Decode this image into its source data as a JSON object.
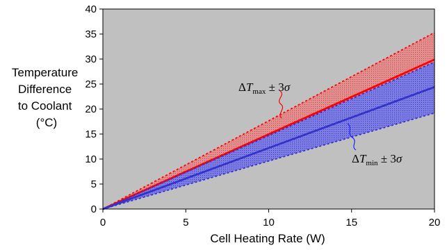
{
  "chart_data": {
    "type": "area",
    "title": "",
    "xlabel": "Cell Heating Rate (W)",
    "ylabel_lines": [
      "Temperature",
      "Difference",
      "to Coolant",
      "(°C)"
    ],
    "xlim": [
      0,
      20
    ],
    "ylim": [
      0,
      40
    ],
    "xticks": [
      0,
      5,
      10,
      15,
      20
    ],
    "yticks": [
      0,
      5,
      10,
      15,
      20,
      25,
      30,
      35,
      40
    ],
    "grid": false,
    "legend": "none",
    "x": [
      0,
      20
    ],
    "series": [
      {
        "key": "dtmax_upper",
        "style": "dotted",
        "color": "#ff0000",
        "values": [
          0,
          35.3
        ]
      },
      {
        "key": "dtmax",
        "style": "solid",
        "color": "#ff0000",
        "values": [
          0,
          29.9
        ]
      },
      {
        "key": "dtmax_lower",
        "style": "dotted",
        "color": "#ff0000",
        "values": [
          0,
          29.4
        ]
      },
      {
        "key": "dtmin_upper",
        "style": "dotted",
        "color": "#3333cc",
        "values": [
          0,
          29.4
        ]
      },
      {
        "key": "dtmin",
        "style": "solid",
        "color": "#3333cc",
        "values": [
          0,
          24.4
        ]
      },
      {
        "key": "dtmin_lower",
        "style": "dotted",
        "color": "#3333cc",
        "values": [
          0,
          19.2
        ]
      }
    ],
    "bands": [
      {
        "key": "dtmax_band",
        "color": "#ff6666",
        "upper": [
          0,
          35.3
        ],
        "lower": [
          0,
          29.4
        ]
      },
      {
        "key": "dtmin_band",
        "color": "#4444ff",
        "upper": [
          0,
          29.4
        ],
        "lower": [
          0,
          19.2
        ]
      }
    ],
    "colors": {
      "plot_background": "#c0c0c0",
      "axes": "#000000"
    },
    "annotations": {
      "dtmax_label": {
        "delta": "Δ",
        "var": "T",
        "sub": "max",
        "pm": " ± 3",
        "sigma": "σ"
      },
      "dtmin_label": {
        "delta": "Δ",
        "var": "T",
        "sub": "min",
        "pm": " ± 3",
        "sigma": "σ"
      }
    }
  }
}
